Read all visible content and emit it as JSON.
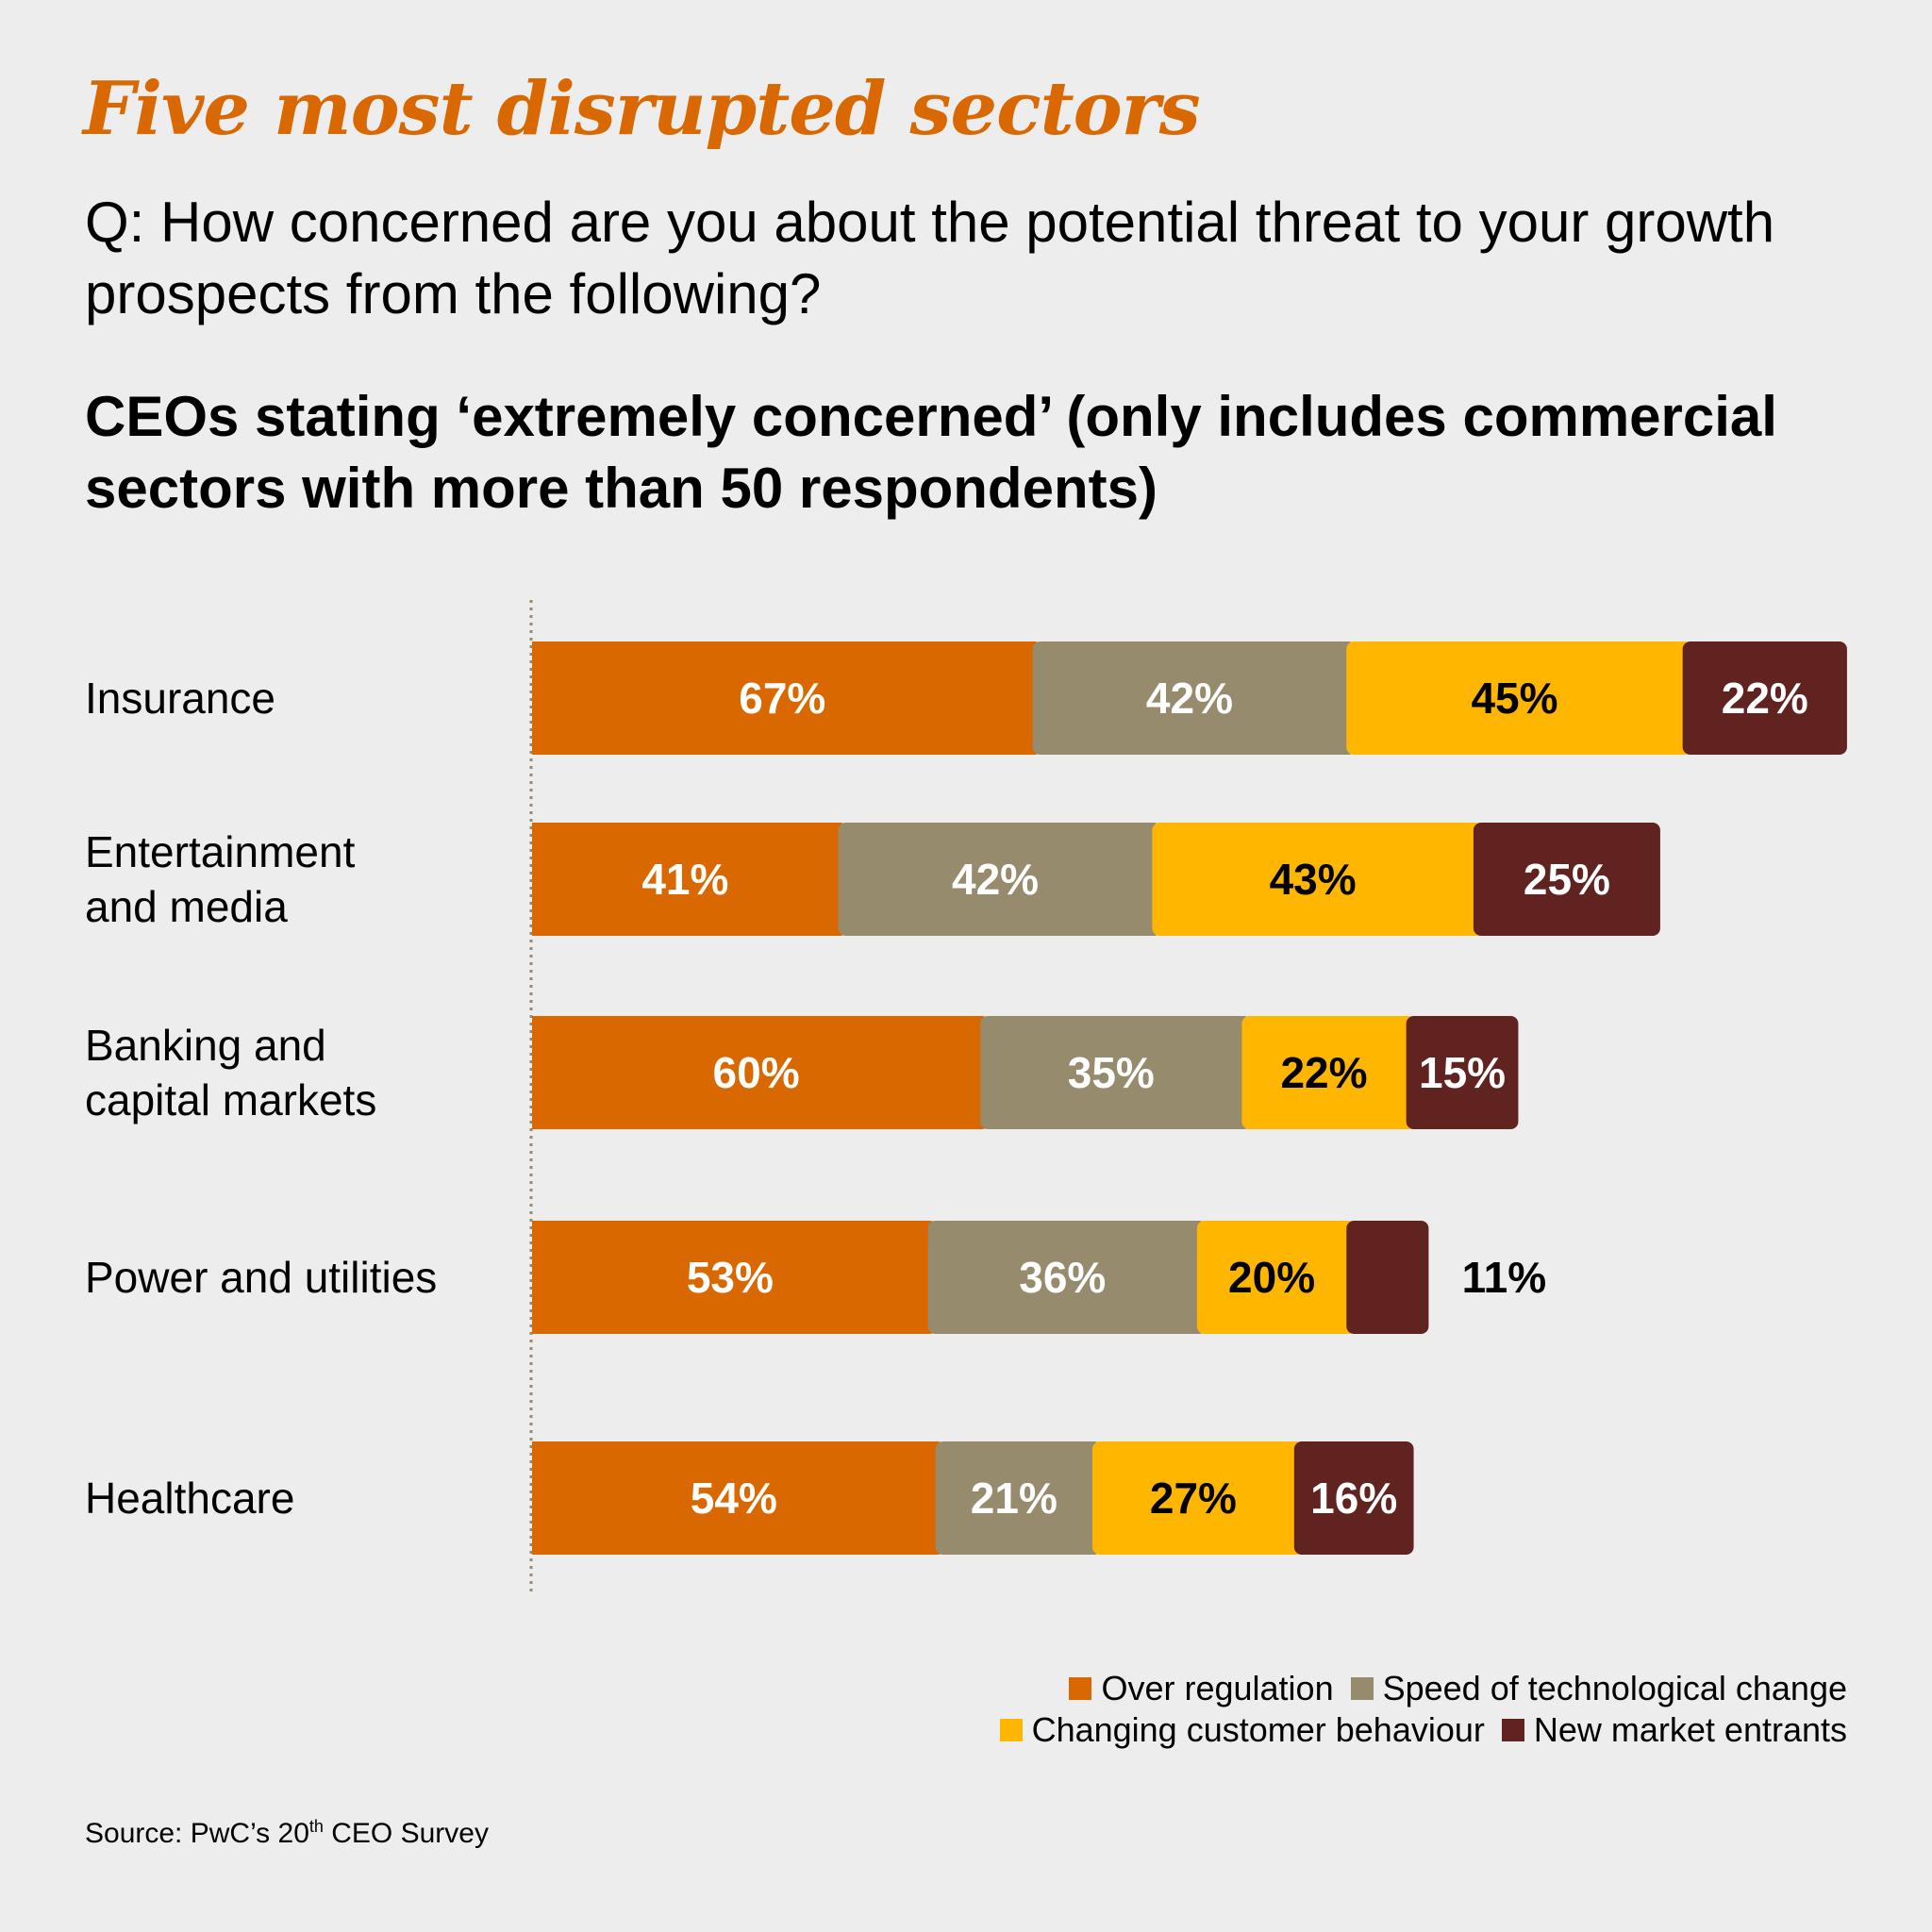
{
  "header": {
    "title": "Five most disrupted sectors",
    "question": "Q: How concerned are you about the potential threat to your growth prospects from the following?",
    "subtitle": "CEOs stating ‘extremely concerned’ (only includes commercial sectors with more than 50 respondents)"
  },
  "chart_data": {
    "type": "bar",
    "orientation": "horizontal",
    "stacked": true,
    "title": "Five most disrupted sectors",
    "subtitle": "CEOs stating ‘extremely concerned’ (only includes commercial sectors with more than 50 respondents)",
    "xlabel": "",
    "ylabel": "",
    "unit": "%",
    "grid": false,
    "legend_position": "bottom-right",
    "categories": [
      [
        "Insurance"
      ],
      [
        "Entertainment",
        "and media"
      ],
      [
        "Banking and",
        "capital markets"
      ],
      [
        "Power and utilities"
      ],
      [
        "Healthcare"
      ]
    ],
    "series": [
      {
        "name": "Over regulation",
        "color": "#d96800",
        "label_color": "#ffffff",
        "values": [
          67,
          41,
          60,
          53,
          54
        ]
      },
      {
        "name": "Speed of technological change",
        "color": "#968b6d",
        "label_color": "#ffffff",
        "values": [
          42,
          42,
          35,
          36,
          21
        ]
      },
      {
        "name": "Changing customer behaviour",
        "color": "#ffb600",
        "label_color": "#000000",
        "values": [
          45,
          43,
          22,
          20,
          27
        ]
      },
      {
        "name": "New market entrants",
        "color": "#602320",
        "label_color": "#ffffff",
        "values": [
          22,
          25,
          15,
          11,
          16
        ]
      }
    ],
    "labels_outside": [
      {
        "category_index": 3,
        "series_index": 3
      }
    ]
  },
  "legend": {
    "rows": [
      [
        0,
        1
      ],
      [
        2,
        3
      ]
    ]
  },
  "source": {
    "prefix": "Source: PwC’s 20",
    "sup": "th",
    "suffix": " CEO Survey"
  }
}
